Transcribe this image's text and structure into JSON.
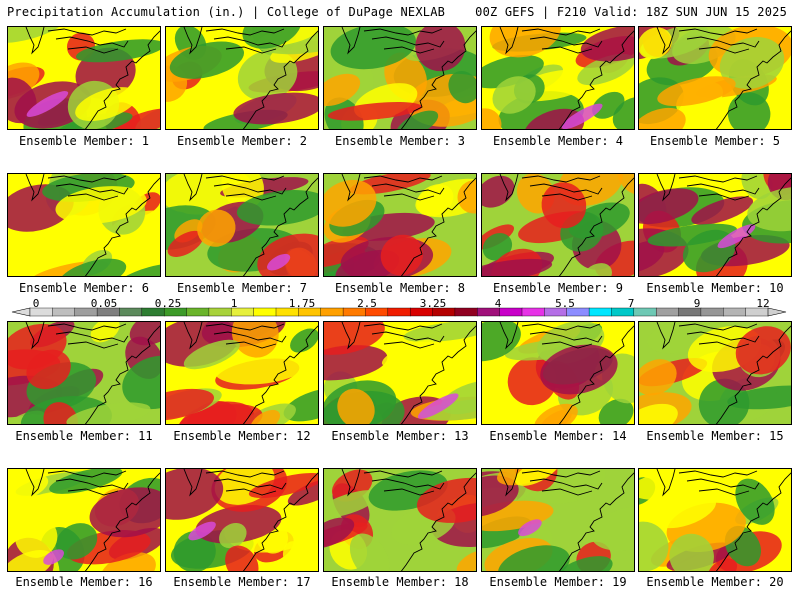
{
  "header": {
    "left": "Precipitation Accumulation (in.) | College of DuPage NEXLAB",
    "right": "00Z GEFS | F210 Valid: 18Z SUN JUN 15 2025"
  },
  "panel_label_prefix": "Ensemble Member: ",
  "members": [
    1,
    2,
    3,
    4,
    5,
    6,
    7,
    8,
    9,
    10,
    11,
    12,
    13,
    14,
    15,
    16,
    17,
    18,
    19,
    20
  ],
  "colorbar": {
    "tick_labels": [
      "0",
      "0.05",
      "0.25",
      "1",
      "1.75",
      "2.5",
      "3.25",
      "4",
      "5.5",
      "7",
      "9",
      "12"
    ],
    "colors": [
      "#dcdcdc",
      "#bebebe",
      "#9e9e9e",
      "#7f7f7f",
      "#5c8a5c",
      "#2e7d32",
      "#3c9a28",
      "#6ab42a",
      "#a8d23a",
      "#e6f03c",
      "#ffff00",
      "#ffe100",
      "#ffc400",
      "#ffa000",
      "#ff7a00",
      "#ff4a00",
      "#f01c00",
      "#d80000",
      "#b40000",
      "#900020",
      "#a0107a",
      "#c800c8",
      "#e632e6",
      "#b46ee6",
      "#8c8cff",
      "#00e6ff",
      "#00c8c8",
      "#6ec8b4",
      "#a0a0a0",
      "#787878",
      "#969696",
      "#b4b4b4",
      "#cfcfcf"
    ],
    "units": "in."
  },
  "colors": {
    "low": "#2e9a2e",
    "mid_low": "#9fd33a",
    "mid": "#ffff00",
    "mid_high": "#ffa500",
    "high": "#e61e1e",
    "very_high": "#a0104a",
    "extreme": "#d84ad8",
    "outline": "#000000"
  }
}
